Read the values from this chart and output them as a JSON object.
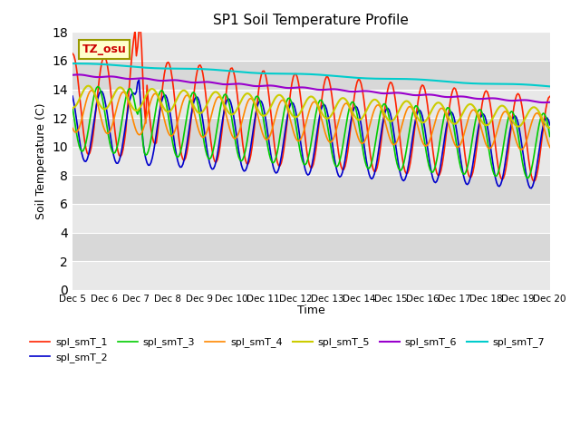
{
  "title": "SP1 Soil Temperature Profile",
  "xlabel": "Time",
  "ylabel": "Soil Temperature (C)",
  "xlim": [
    0,
    15
  ],
  "ylim": [
    0,
    18
  ],
  "yticks": [
    0,
    2,
    4,
    6,
    8,
    10,
    12,
    14,
    16,
    18
  ],
  "xtick_labels": [
    "Dec 5",
    "Dec 6",
    "Dec 7",
    "Dec 8",
    "Dec 9",
    "Dec 10",
    "Dec 11",
    "Dec 12",
    "Dec 13",
    "Dec 14",
    "Dec 15",
    "Dec 16",
    "Dec 17",
    "Dec 18",
    "Dec 19",
    "Dec 20"
  ],
  "annotation_text": "TZ_osu",
  "annotation_color": "#cc0000",
  "annotation_bg": "#ffffcc",
  "annotation_border": "#999900",
  "series_colors": {
    "spl_smT_1": "#ff2200",
    "spl_smT_2": "#0000cc",
    "spl_smT_3": "#00cc00",
    "spl_smT_4": "#ff8800",
    "spl_smT_5": "#cccc00",
    "spl_smT_6": "#9900cc",
    "spl_smT_7": "#00cccc"
  },
  "band_colors": [
    "#e0e0e0",
    "#d0d0d0"
  ],
  "fig_facecolor": "#ffffff",
  "plot_facecolor": "#e8e8e8"
}
